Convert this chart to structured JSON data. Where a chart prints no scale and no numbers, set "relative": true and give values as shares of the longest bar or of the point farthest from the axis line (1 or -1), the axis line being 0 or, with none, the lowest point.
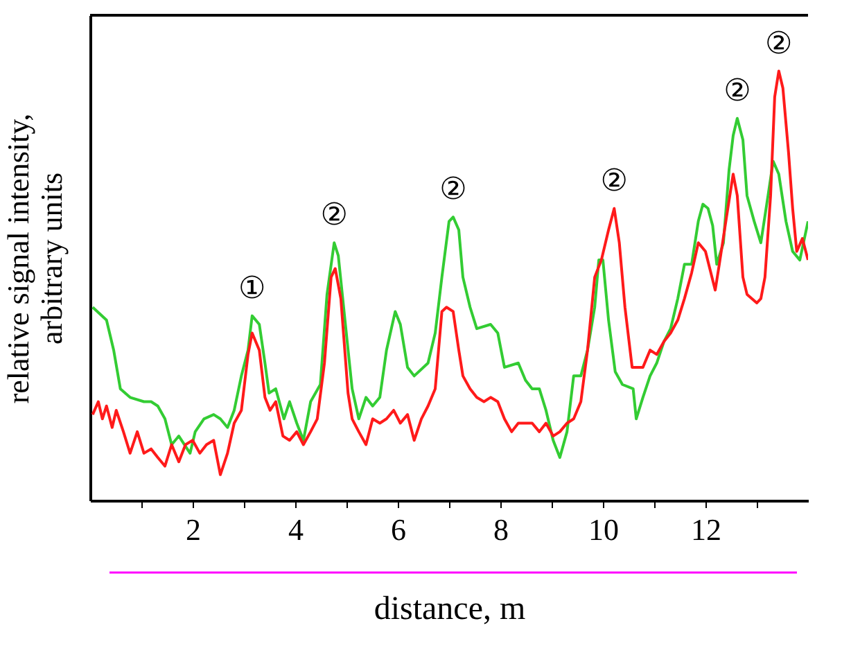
{
  "chart_data": {
    "type": "line",
    "relative": true,
    "xlabel": "distance,   m",
    "ylabel": "relative signal intensity,\narbitrary units",
    "xlim": [
      0,
      14
    ],
    "xticks": [
      {
        "value": 1,
        "label": null
      },
      2,
      {
        "value": 3,
        "label": null
      },
      4,
      {
        "value": 5,
        "label": null
      },
      6,
      {
        "value": 7,
        "label": null
      },
      8,
      {
        "value": 9,
        "label": null
      },
      10,
      {
        "value": 11,
        "label": null
      },
      12,
      {
        "value": 13,
        "label": null
      }
    ],
    "grid": false,
    "legend": false,
    "marker": "none",
    "line_style": "solid",
    "series": [
      {
        "color": "#33cc33",
        "x": [
          0.05,
          0.32,
          0.46,
          0.59,
          0.78,
          1.05,
          1.19,
          1.32,
          1.46,
          1.59,
          1.73,
          1.95,
          2.05,
          2.22,
          2.41,
          2.54,
          2.68,
          2.81,
          2.95,
          3.08,
          3.16,
          3.3,
          3.41,
          3.49,
          3.62,
          3.78,
          3.89,
          4.03,
          4.16,
          4.3,
          4.49,
          4.62,
          4.76,
          4.84,
          4.97,
          5.11,
          5.24,
          5.38,
          5.51,
          5.65,
          5.78,
          5.95,
          6.05,
          6.19,
          6.32,
          6.59,
          6.73,
          6.86,
          7.0,
          7.08,
          7.19,
          7.27,
          7.41,
          7.54,
          7.81,
          7.95,
          8.08,
          8.35,
          8.49,
          8.62,
          8.76,
          8.89,
          9.03,
          9.16,
          9.3,
          9.43,
          9.57,
          9.7,
          9.84,
          9.92,
          10.0,
          10.11,
          10.24,
          10.38,
          10.59,
          10.65,
          10.78,
          10.92,
          11.05,
          11.19,
          11.32,
          11.46,
          11.59,
          11.73,
          11.86,
          11.95,
          12.05,
          12.14,
          12.22,
          12.35,
          12.46,
          12.54,
          12.62,
          12.73,
          12.81,
          12.95,
          13.08,
          13.22,
          13.32,
          13.43,
          13.57,
          13.7,
          13.84,
          14.0
        ],
        "values": [
          0.45,
          0.42,
          0.35,
          0.26,
          0.24,
          0.23,
          0.23,
          0.22,
          0.19,
          0.13,
          0.15,
          0.11,
          0.16,
          0.19,
          0.2,
          0.19,
          0.17,
          0.21,
          0.29,
          0.35,
          0.43,
          0.41,
          0.32,
          0.25,
          0.26,
          0.19,
          0.23,
          0.18,
          0.14,
          0.23,
          0.27,
          0.48,
          0.6,
          0.57,
          0.42,
          0.26,
          0.19,
          0.24,
          0.22,
          0.24,
          0.35,
          0.44,
          0.41,
          0.31,
          0.29,
          0.32,
          0.39,
          0.52,
          0.65,
          0.66,
          0.63,
          0.52,
          0.45,
          0.4,
          0.41,
          0.39,
          0.31,
          0.32,
          0.28,
          0.26,
          0.26,
          0.21,
          0.14,
          0.1,
          0.16,
          0.29,
          0.29,
          0.35,
          0.45,
          0.56,
          0.56,
          0.42,
          0.3,
          0.27,
          0.26,
          0.19,
          0.24,
          0.29,
          0.32,
          0.37,
          0.4,
          0.47,
          0.55,
          0.55,
          0.65,
          0.69,
          0.68,
          0.64,
          0.55,
          0.6,
          0.77,
          0.85,
          0.89,
          0.84,
          0.71,
          0.65,
          0.6,
          0.71,
          0.79,
          0.76,
          0.65,
          0.58,
          0.56,
          0.65
        ]
      },
      {
        "color": "#ff1a1a",
        "x": [
          0.05,
          0.16,
          0.24,
          0.32,
          0.43,
          0.51,
          0.65,
          0.78,
          0.92,
          1.05,
          1.19,
          1.32,
          1.46,
          1.59,
          1.73,
          1.86,
          2.0,
          2.14,
          2.27,
          2.41,
          2.54,
          2.68,
          2.81,
          2.95,
          3.08,
          3.16,
          3.3,
          3.41,
          3.51,
          3.62,
          3.76,
          3.89,
          4.03,
          4.16,
          4.3,
          4.43,
          4.57,
          4.7,
          4.78,
          4.89,
          5.03,
          5.11,
          5.24,
          5.38,
          5.51,
          5.65,
          5.78,
          5.92,
          6.05,
          6.19,
          6.32,
          6.46,
          6.59,
          6.73,
          6.86,
          6.95,
          7.08,
          7.19,
          7.27,
          7.41,
          7.54,
          7.68,
          7.81,
          7.95,
          8.08,
          8.22,
          8.35,
          8.62,
          8.76,
          8.89,
          9.03,
          9.16,
          9.3,
          9.43,
          9.57,
          9.7,
          9.84,
          9.97,
          10.11,
          10.22,
          10.32,
          10.43,
          10.57,
          10.78,
          10.92,
          11.05,
          11.19,
          11.32,
          11.46,
          11.59,
          11.73,
          11.86,
          12.0,
          12.19,
          12.27,
          12.41,
          12.54,
          12.62,
          12.73,
          12.81,
          13.0,
          13.08,
          13.16,
          13.27,
          13.35,
          13.43,
          13.51,
          13.62,
          13.7,
          13.78,
          13.89,
          14.0
        ],
        "values": [
          0.2,
          0.23,
          0.19,
          0.22,
          0.17,
          0.21,
          0.16,
          0.11,
          0.16,
          0.11,
          0.12,
          0.1,
          0.08,
          0.13,
          0.09,
          0.13,
          0.14,
          0.11,
          0.13,
          0.14,
          0.06,
          0.11,
          0.18,
          0.21,
          0.34,
          0.39,
          0.35,
          0.24,
          0.21,
          0.23,
          0.15,
          0.14,
          0.16,
          0.13,
          0.16,
          0.19,
          0.32,
          0.52,
          0.54,
          0.47,
          0.25,
          0.19,
          0.16,
          0.13,
          0.19,
          0.18,
          0.19,
          0.21,
          0.18,
          0.2,
          0.14,
          0.19,
          0.22,
          0.26,
          0.44,
          0.45,
          0.44,
          0.35,
          0.29,
          0.26,
          0.24,
          0.23,
          0.24,
          0.23,
          0.19,
          0.16,
          0.18,
          0.18,
          0.16,
          0.18,
          0.15,
          0.16,
          0.18,
          0.19,
          0.23,
          0.35,
          0.52,
          0.56,
          0.63,
          0.68,
          0.6,
          0.45,
          0.31,
          0.31,
          0.35,
          0.34,
          0.37,
          0.39,
          0.42,
          0.47,
          0.53,
          0.6,
          0.58,
          0.49,
          0.55,
          0.66,
          0.76,
          0.71,
          0.52,
          0.48,
          0.46,
          0.47,
          0.52,
          0.71,
          0.94,
          1.0,
          0.96,
          0.81,
          0.68,
          0.58,
          0.61,
          0.56
        ]
      }
    ],
    "annotations": [
      {
        "text": "①",
        "x": 3.16,
        "y": 0.43
      },
      {
        "text": "②",
        "x": 4.76,
        "y": 0.6
      },
      {
        "text": "②",
        "x": 7.08,
        "y": 0.66
      },
      {
        "text": "②",
        "x": 10.22,
        "y": 0.68
      },
      {
        "text": "②",
        "x": 12.62,
        "y": 0.89
      },
      {
        "text": "②",
        "x": 13.43,
        "y": 1.0
      }
    ]
  }
}
